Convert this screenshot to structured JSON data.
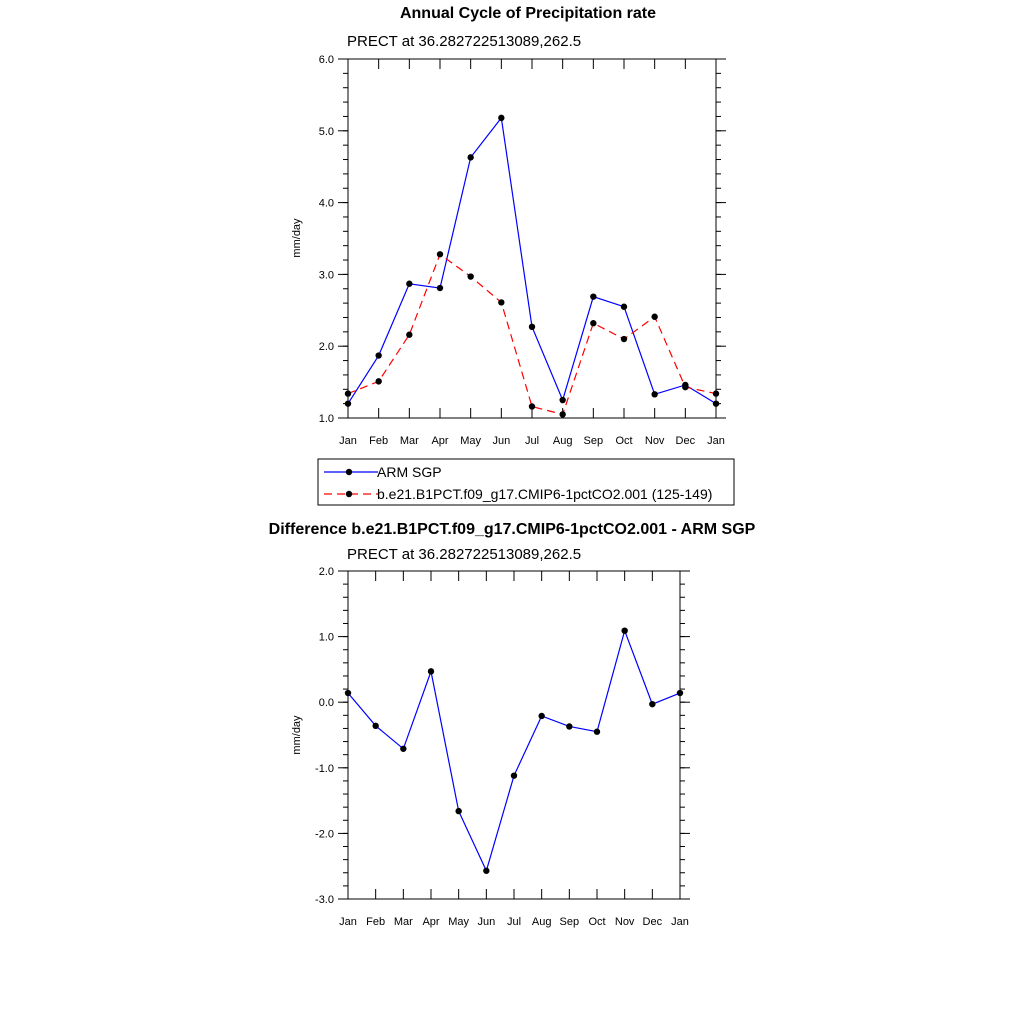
{
  "colors": {
    "obs": "#0000ff",
    "model": "#ff0000",
    "marker": "#000000"
  },
  "chart_data": [
    {
      "type": "line",
      "title": "Annual Cycle of Precipitation rate",
      "subtitle": "PRECT at 36.282722513089,262.5",
      "xlabel": "",
      "ylabel": "mm/day",
      "categories": [
        "Jan",
        "Feb",
        "Mar",
        "Apr",
        "May",
        "Jun",
        "Jul",
        "Aug",
        "Sep",
        "Oct",
        "Nov",
        "Dec",
        "Jan"
      ],
      "ylim": [
        1.0,
        6.0
      ],
      "yticks": [
        "1.0",
        "2.0",
        "3.0",
        "4.0",
        "5.0",
        "6.0"
      ],
      "series": [
        {
          "name": "ARM SGP",
          "style": "solid",
          "color": "#0000ff",
          "values": [
            1.2,
            1.87,
            2.87,
            2.81,
            4.63,
            5.18,
            2.27,
            1.25,
            2.69,
            2.55,
            1.33,
            1.46,
            1.2
          ]
        },
        {
          "name": "b.e21.B1PCT.f09_g17.CMIP6-1pctCO2.001 (125-149)",
          "style": "dashed",
          "color": "#ff0000",
          "values": [
            1.34,
            1.51,
            2.16,
            3.28,
            2.97,
            2.61,
            1.16,
            1.05,
            2.32,
            2.1,
            2.41,
            1.43,
            1.34
          ]
        }
      ],
      "legend": [
        "ARM SGP",
        "b.e21.B1PCT.f09_g17.CMIP6-1pctCO2.001 (125-149)"
      ]
    },
    {
      "type": "line",
      "title": "Difference b.e21.B1PCT.f09_g17.CMIP6-1pctCO2.001 - ARM SGP",
      "subtitle": "PRECT at 36.282722513089,262.5",
      "xlabel": "",
      "ylabel": "mm/day",
      "categories": [
        "Jan",
        "Feb",
        "Mar",
        "Apr",
        "May",
        "Jun",
        "Jul",
        "Aug",
        "Sep",
        "Oct",
        "Nov",
        "Dec",
        "Jan"
      ],
      "ylim": [
        -3.0,
        2.0
      ],
      "yticks": [
        "-3.0",
        "-2.0",
        "-1.0",
        "0.0",
        "1.0",
        "2.0"
      ],
      "series": [
        {
          "name": "difference",
          "style": "solid",
          "color": "#0000ff",
          "values": [
            0.14,
            -0.36,
            -0.71,
            0.47,
            -1.66,
            -2.57,
            -1.12,
            -0.21,
            -0.37,
            -0.45,
            1.09,
            -0.03,
            0.14
          ]
        }
      ]
    }
  ]
}
